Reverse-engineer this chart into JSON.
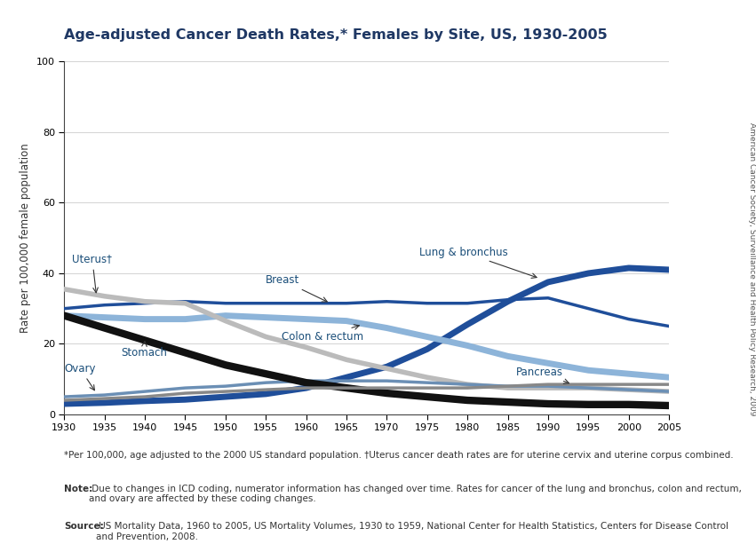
{
  "title": "Age-adjusted Cancer Death Rates,* Females by Site, US, 1930-2005",
  "ylabel": "Rate per 100,000 female population",
  "ylim": [
    0,
    100
  ],
  "xlim": [
    1930,
    2005
  ],
  "yticks": [
    0,
    20,
    40,
    60,
    80,
    100
  ],
  "xticks": [
    1930,
    1935,
    1940,
    1945,
    1950,
    1955,
    1960,
    1965,
    1970,
    1975,
    1980,
    1985,
    1990,
    1995,
    2000,
    2005
  ],
  "footnote1": "*Per 100,000, age adjusted to the 2000 US standard population. †Uterus cancer death rates are for uterine cervix and uterine corpus combined.",
  "footnote2_bold": "Note:",
  "footnote2_rest": " Due to changes in ICD coding, numerator information has changed over time. Rates for cancer of the lung and bronchus, colon and rectum,\nand ovary are affected by these coding changes.",
  "footnote3_bold": "Source:",
  "footnote3_rest": " US Mortality Data, 1960 to 2005, US Mortality Volumes, 1930 to 1959, National Center for Health Statistics, Centers for Disease Control\nand Prevention, 2008.",
  "side_text": "American Cancer Society, Surveillance and Health Policy Research, 2009",
  "series": {
    "Lung & bronchus": {
      "color": "#1F4E9A",
      "linewidth": 5,
      "years": [
        1930,
        1935,
        1940,
        1945,
        1950,
        1955,
        1960,
        1965,
        1970,
        1975,
        1980,
        1985,
        1990,
        1995,
        2000,
        2005
      ],
      "values": [
        3.0,
        3.3,
        3.8,
        4.2,
        5.0,
        5.8,
        7.5,
        10.5,
        13.5,
        18.5,
        25.5,
        32.0,
        37.5,
        40.0,
        41.5,
        41.0
      ]
    },
    "Breast": {
      "color": "#1F4E9A",
      "linewidth": 2.5,
      "years": [
        1930,
        1935,
        1940,
        1945,
        1950,
        1955,
        1960,
        1965,
        1970,
        1975,
        1980,
        1985,
        1990,
        1995,
        2000,
        2005
      ],
      "values": [
        30.0,
        31.0,
        31.5,
        32.0,
        31.5,
        31.5,
        31.5,
        31.5,
        32.0,
        31.5,
        31.5,
        32.5,
        33.0,
        30.0,
        27.0,
        25.0
      ]
    },
    "Colon & rectum": {
      "color": "#8DB4D9",
      "linewidth": 5,
      "years": [
        1930,
        1935,
        1940,
        1945,
        1950,
        1955,
        1960,
        1965,
        1970,
        1975,
        1980,
        1985,
        1990,
        1995,
        2000,
        2005
      ],
      "values": [
        28.0,
        27.5,
        27.0,
        27.0,
        28.0,
        27.5,
        27.0,
        26.5,
        24.5,
        22.0,
        19.5,
        16.5,
        14.5,
        12.5,
        11.5,
        10.5
      ]
    },
    "Uterus": {
      "color": "#BBBBBB",
      "linewidth": 4,
      "years": [
        1930,
        1935,
        1940,
        1945,
        1950,
        1955,
        1960,
        1965,
        1970,
        1975,
        1980,
        1985,
        1990,
        1995,
        2000,
        2005
      ],
      "values": [
        35.5,
        33.5,
        32.0,
        31.5,
        26.5,
        22.0,
        19.0,
        15.5,
        13.0,
        10.5,
        8.5,
        7.5,
        7.5,
        7.5,
        7.0,
        6.5
      ]
    },
    "Ovary": {
      "color": "#6B8FB5",
      "linewidth": 2.5,
      "years": [
        1930,
        1935,
        1940,
        1945,
        1950,
        1955,
        1960,
        1965,
        1970,
        1975,
        1980,
        1985,
        1990,
        1995,
        2000,
        2005
      ],
      "values": [
        5.0,
        5.5,
        6.5,
        7.5,
        8.0,
        9.0,
        9.5,
        9.5,
        9.5,
        9.0,
        8.5,
        8.0,
        8.0,
        7.5,
        7.0,
        6.5
      ]
    },
    "Stomach": {
      "color": "#111111",
      "linewidth": 6,
      "years": [
        1930,
        1935,
        1940,
        1945,
        1950,
        1955,
        1960,
        1965,
        1970,
        1975,
        1980,
        1985,
        1990,
        1995,
        2000,
        2005
      ],
      "values": [
        28.0,
        24.5,
        21.0,
        17.5,
        14.0,
        11.5,
        9.0,
        7.5,
        6.0,
        5.0,
        4.0,
        3.5,
        3.0,
        2.8,
        2.8,
        2.5
      ]
    },
    "Pancreas": {
      "color": "#888888",
      "linewidth": 2.5,
      "years": [
        1930,
        1935,
        1940,
        1945,
        1950,
        1955,
        1960,
        1965,
        1970,
        1975,
        1980,
        1985,
        1990,
        1995,
        2000,
        2005
      ],
      "values": [
        4.0,
        4.5,
        5.0,
        6.0,
        6.5,
        7.0,
        7.5,
        7.5,
        7.5,
        7.5,
        7.5,
        8.0,
        8.5,
        8.5,
        8.5,
        8.5
      ]
    }
  },
  "title_color": "#1F3864",
  "annotation_color": "#1A4E79",
  "arrow_color": "#333333"
}
